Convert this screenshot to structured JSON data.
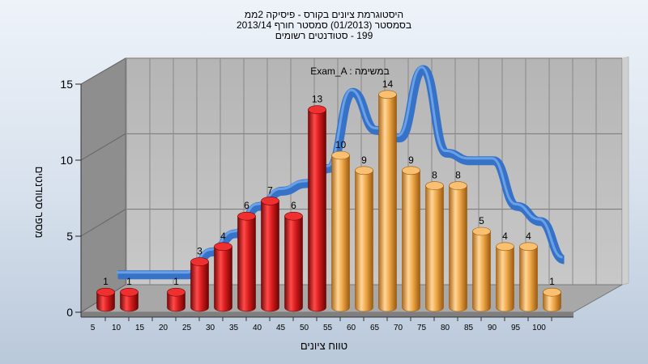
{
  "chart_data": {
    "type": "bar",
    "title": [
      "היסטוגרמת ציונים בקורס - פיסיקה 2ממ",
      "בסמסטר (01/2013) סמסטר חורף 2013/14",
      "199 - סטודנטים רשומים"
    ],
    "annotation": "Exam_A : במשימה",
    "xlabel": "טווח ציונים",
    "ylabel": "מספר סטודנטים",
    "categories": [
      "5",
      "10",
      "15",
      "20",
      "25",
      "30",
      "35",
      "40",
      "45",
      "50",
      "55",
      "60",
      "65",
      "70",
      "75",
      "80",
      "85",
      "90",
      "95",
      "100"
    ],
    "values": [
      1,
      1,
      0,
      1,
      3,
      4,
      6,
      7,
      6,
      13,
      10,
      9,
      14,
      9,
      8,
      8,
      5,
      4,
      4,
      1
    ],
    "data_labels": [
      "1",
      "1",
      "",
      "1",
      "3",
      "4",
      "6",
      "7",
      "6",
      "13",
      "10",
      "9",
      "14",
      "9",
      "8",
      "8",
      "5",
      "4",
      "4",
      "1"
    ],
    "ylim": [
      0,
      15
    ],
    "yticks": [
      "0",
      "5",
      "10",
      "15"
    ],
    "bar_colors": {
      "failing": "#d81c1c",
      "passing": "#f0a848"
    },
    "failing_count": 10,
    "curve_color": "#3673c8",
    "curve_values": [
      1.5,
      1.5,
      1.5,
      1.5,
      3.0,
      4.2,
      6.0,
      7.0,
      7.5,
      8.5,
      13.5,
      11.0,
      10.5,
      15.0,
      9.5,
      9.0,
      9.0,
      6.0,
      5.0,
      2.5
    ],
    "grid": true,
    "legend": "none"
  }
}
